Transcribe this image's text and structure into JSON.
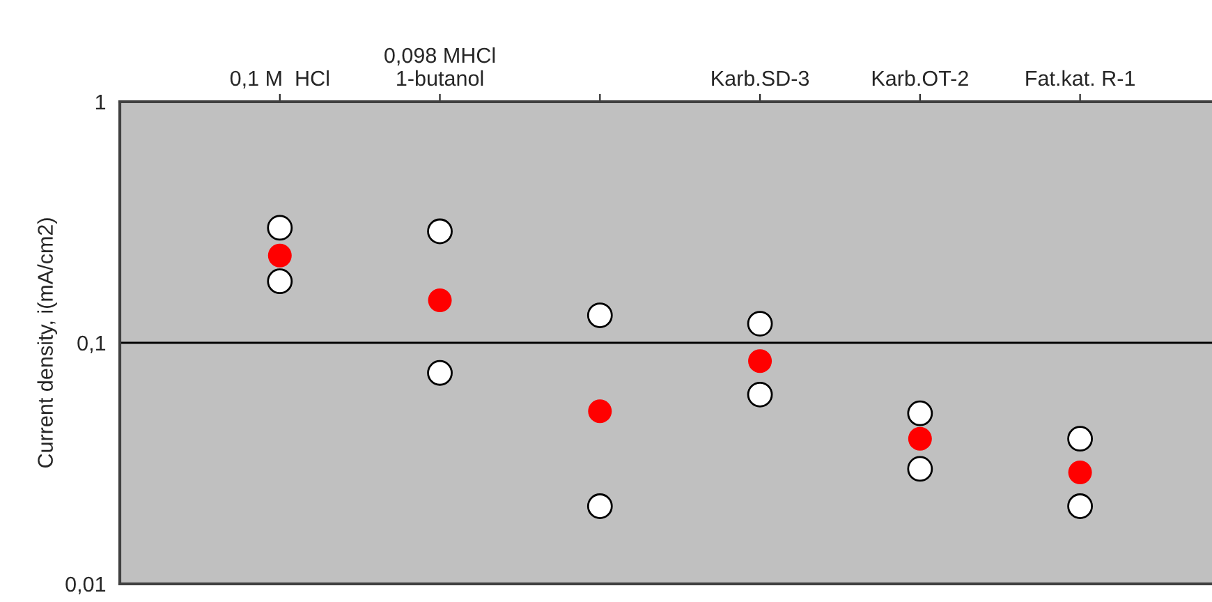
{
  "chart_data": {
    "type": "scatter",
    "ylabel": "Current density, i(mA/cm2)",
    "categories": [
      "0,1 M  HCl",
      "0,098 MHCl\n1-butanol",
      null,
      "Karb.SD-3",
      "Karb.OT-2",
      "Fat.kat. R-1"
    ],
    "series": [
      {
        "color": "#ffffff",
        "values": [
          0.3,
          0.29,
          0.13,
          0.12,
          0.051,
          0.04
        ]
      },
      {
        "color": "#ff0000",
        "values": [
          0.23,
          0.15,
          0.052,
          0.084,
          0.04,
          0.029
        ]
      },
      {
        "color": "#ffffff",
        "values": [
          0.18,
          0.075,
          0.021,
          0.061,
          0.03,
          0.021
        ]
      }
    ],
    "log": "y",
    "ylim": [
      0.01,
      1
    ],
    "yticks": [
      {
        "value": 0.01,
        "label": "0,01"
      },
      {
        "value": 0.1,
        "label": "0,1"
      },
      1
    ],
    "grid": "y",
    "marker": "circle"
  }
}
